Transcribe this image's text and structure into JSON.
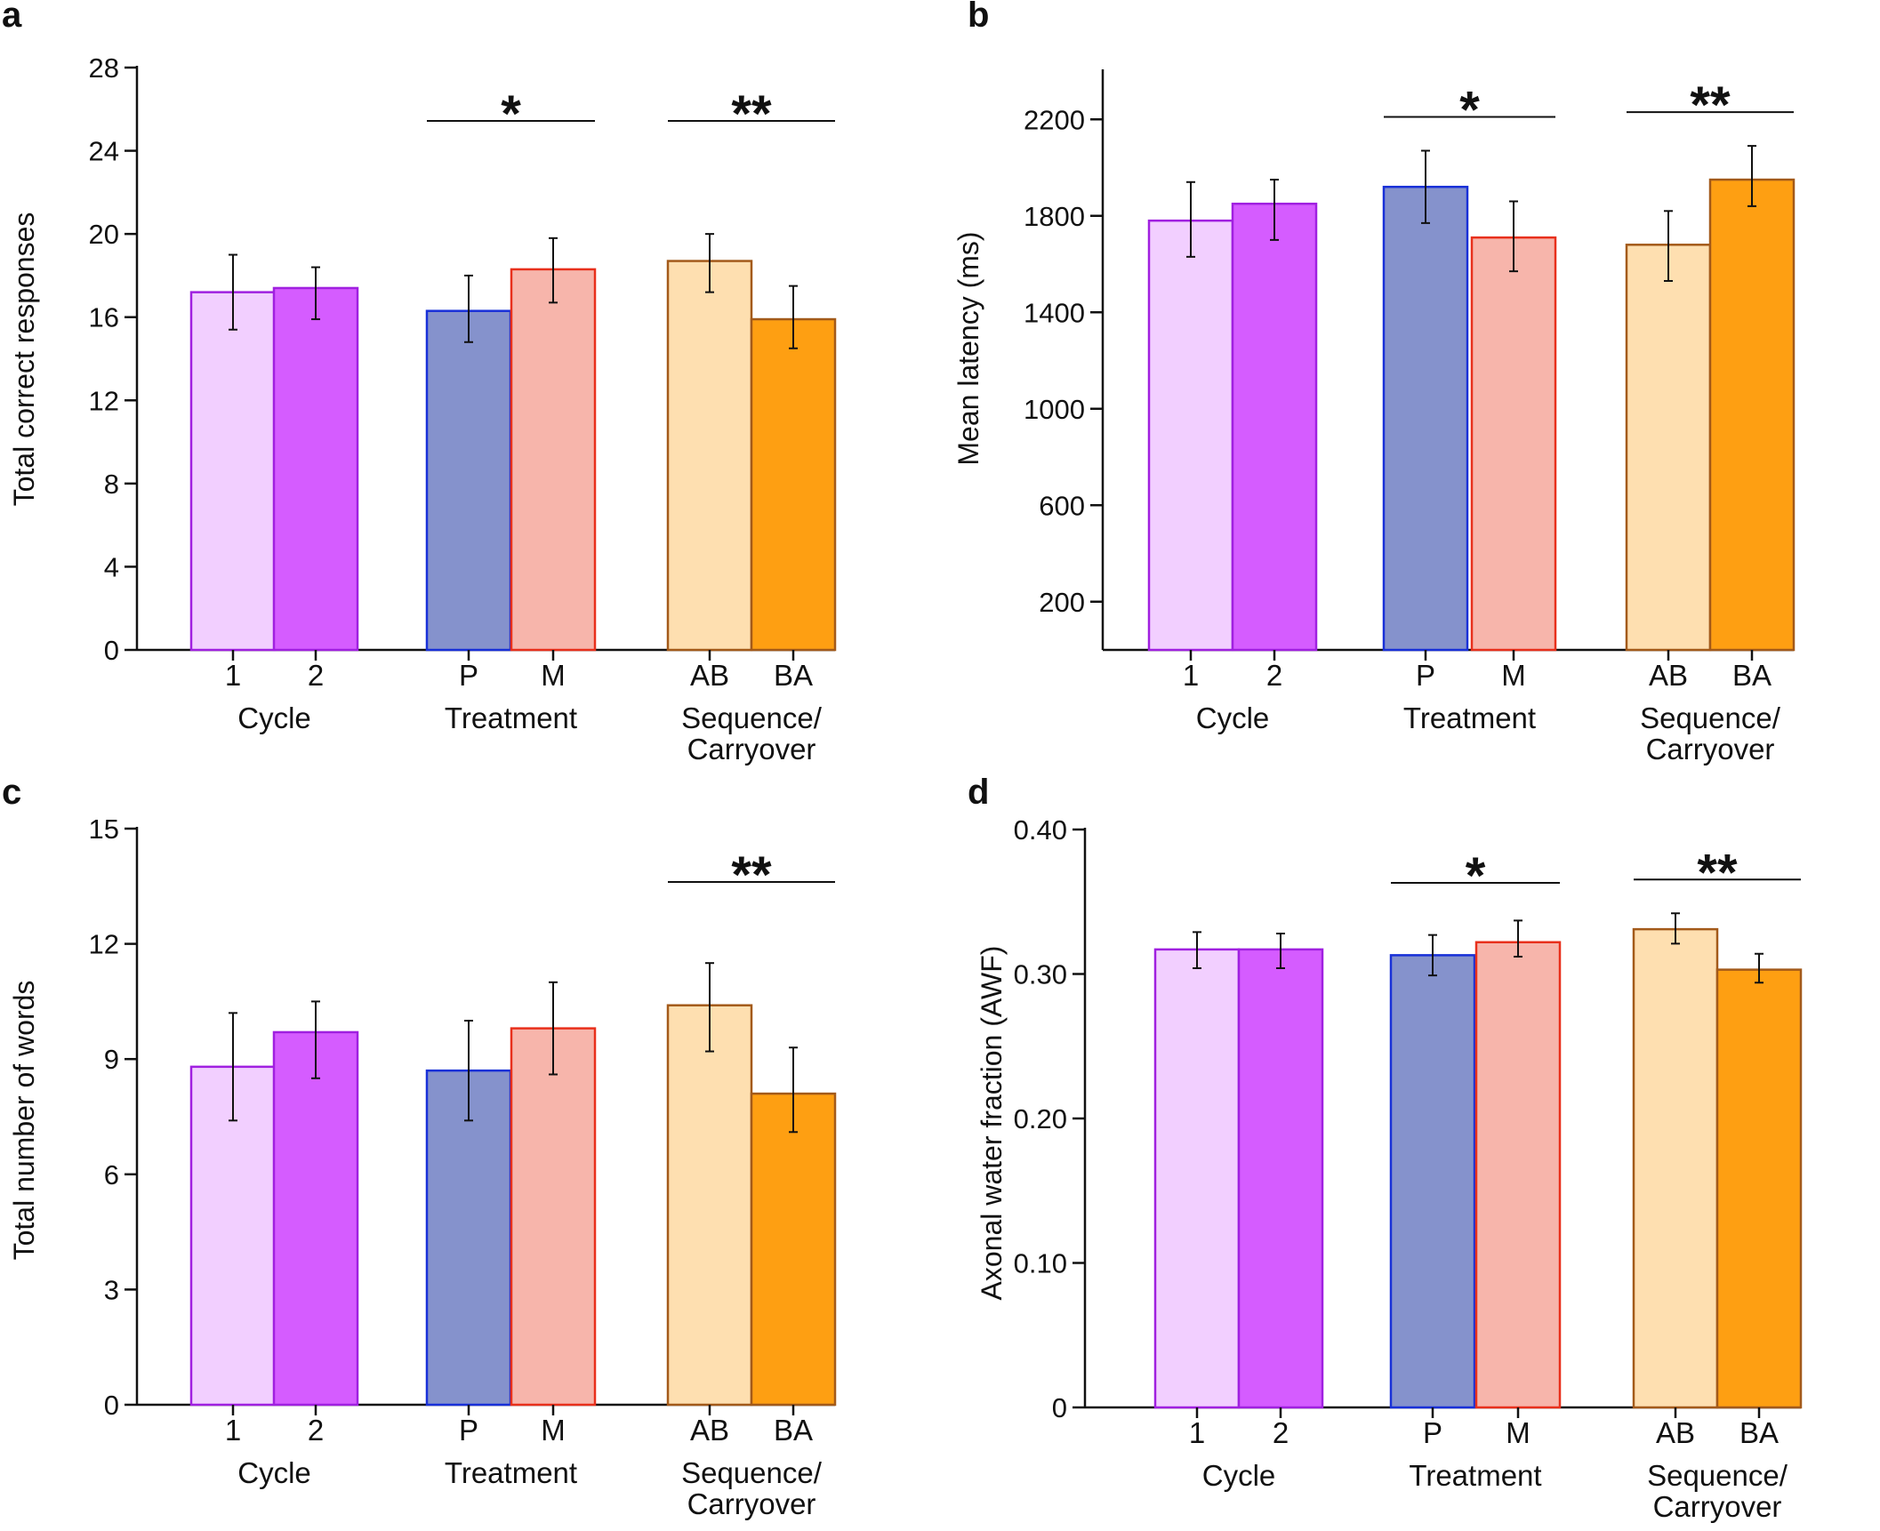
{
  "figure": {
    "panel_letters": [
      "a",
      "b",
      "c",
      "d"
    ]
  },
  "colors": {
    "cycle1_fill": "#F2CFFF",
    "cycle2_fill": "#D55CFF",
    "cycle_edge": "#A020E0",
    "p_fill": "#8592CC",
    "p_edge": "#1830D8",
    "m_fill": "#F7B5AB",
    "m_edge": "#E8301C",
    "ab_fill": "#FEDFB0",
    "ba_fill": "#FE9F12",
    "seq_edge": "#A35A1A",
    "axis": "#111111"
  },
  "chart_data": [
    {
      "type": "bar",
      "panel": "a",
      "ylabel": "Total correct responses",
      "ylim": [
        0,
        28
      ],
      "yticks": [
        "0",
        "4",
        "8",
        "12",
        "16",
        "20",
        "24",
        "28"
      ],
      "groups": [
        {
          "name": "Cycle",
          "categories": [
            "1",
            "2"
          ],
          "values": [
            17.2,
            17.4
          ],
          "err_low": [
            15.4,
            15.9
          ],
          "err_high": [
            19.0,
            18.4
          ],
          "sig": ""
        },
        {
          "name": "Treatment",
          "categories": [
            "P",
            "M"
          ],
          "values": [
            16.3,
            18.3
          ],
          "err_low": [
            14.8,
            16.7
          ],
          "err_high": [
            18.0,
            19.8
          ],
          "sig": "*"
        },
        {
          "name": "Sequence/ Carryover",
          "categories": [
            "AB",
            "BA"
          ],
          "values": [
            18.7,
            15.9
          ],
          "err_low": [
            17.2,
            14.5
          ],
          "err_high": [
            20.0,
            17.5
          ],
          "sig": "**"
        }
      ]
    },
    {
      "type": "bar",
      "panel": "b",
      "ylabel": "Mean latency (ms)",
      "ylim": [
        0,
        2400
      ],
      "yticks": [
        "200",
        "600",
        "1000",
        "1400",
        "1800",
        "2200"
      ],
      "groups": [
        {
          "name": "Cycle",
          "categories": [
            "1",
            "2"
          ],
          "values": [
            1780,
            1850
          ],
          "err_low": [
            1630,
            1700
          ],
          "err_high": [
            1940,
            1950
          ],
          "sig": ""
        },
        {
          "name": "Treatment",
          "categories": [
            "P",
            "M"
          ],
          "values": [
            1920,
            1710
          ],
          "err_low": [
            1770,
            1570
          ],
          "err_high": [
            2070,
            1860
          ],
          "sig": "*"
        },
        {
          "name": "Sequence/ Carryover",
          "categories": [
            "AB",
            "BA"
          ],
          "values": [
            1680,
            1950
          ],
          "err_low": [
            1530,
            1840
          ],
          "err_high": [
            1820,
            2090
          ],
          "sig": "**"
        }
      ]
    },
    {
      "type": "bar",
      "panel": "c",
      "ylabel": "Total number of words",
      "ylim": [
        0,
        15
      ],
      "yticks": [
        "0",
        "3",
        "6",
        "9",
        "12",
        "15"
      ],
      "groups": [
        {
          "name": "Cycle",
          "categories": [
            "1",
            "2"
          ],
          "values": [
            8.8,
            9.7
          ],
          "err_low": [
            7.4,
            8.5
          ],
          "err_high": [
            10.2,
            10.5
          ],
          "sig": ""
        },
        {
          "name": "Treatment",
          "categories": [
            "P",
            "M"
          ],
          "values": [
            8.7,
            9.8
          ],
          "err_low": [
            7.4,
            8.6
          ],
          "err_high": [
            10.0,
            11.0
          ],
          "sig": ""
        },
        {
          "name": "Sequence/ Carryover",
          "categories": [
            "AB",
            "BA"
          ],
          "values": [
            10.4,
            8.1
          ],
          "err_low": [
            9.2,
            7.1
          ],
          "err_high": [
            11.5,
            9.3
          ],
          "sig": "**"
        }
      ]
    },
    {
      "type": "bar",
      "panel": "d",
      "ylabel": "Axonal water fraction (AWF)",
      "ylim": [
        0,
        0.4
      ],
      "yticks": [
        "0",
        "0.10",
        "0.20",
        "0.30",
        "0.40"
      ],
      "groups": [
        {
          "name": "Cycle",
          "categories": [
            "1",
            "2"
          ],
          "values": [
            0.317,
            0.317
          ],
          "err_low": [
            0.304,
            0.304
          ],
          "err_high": [
            0.329,
            0.328
          ],
          "sig": ""
        },
        {
          "name": "Treatment",
          "categories": [
            "P",
            "M"
          ],
          "values": [
            0.313,
            0.322
          ],
          "err_low": [
            0.299,
            0.312
          ],
          "err_high": [
            0.327,
            0.337
          ],
          "sig": "*"
        },
        {
          "name": "Sequence/ Carryover",
          "categories": [
            "AB",
            "BA"
          ],
          "values": [
            0.331,
            0.303
          ],
          "err_low": [
            0.321,
            0.294
          ],
          "err_high": [
            0.342,
            0.314
          ],
          "sig": "**"
        }
      ]
    }
  ]
}
